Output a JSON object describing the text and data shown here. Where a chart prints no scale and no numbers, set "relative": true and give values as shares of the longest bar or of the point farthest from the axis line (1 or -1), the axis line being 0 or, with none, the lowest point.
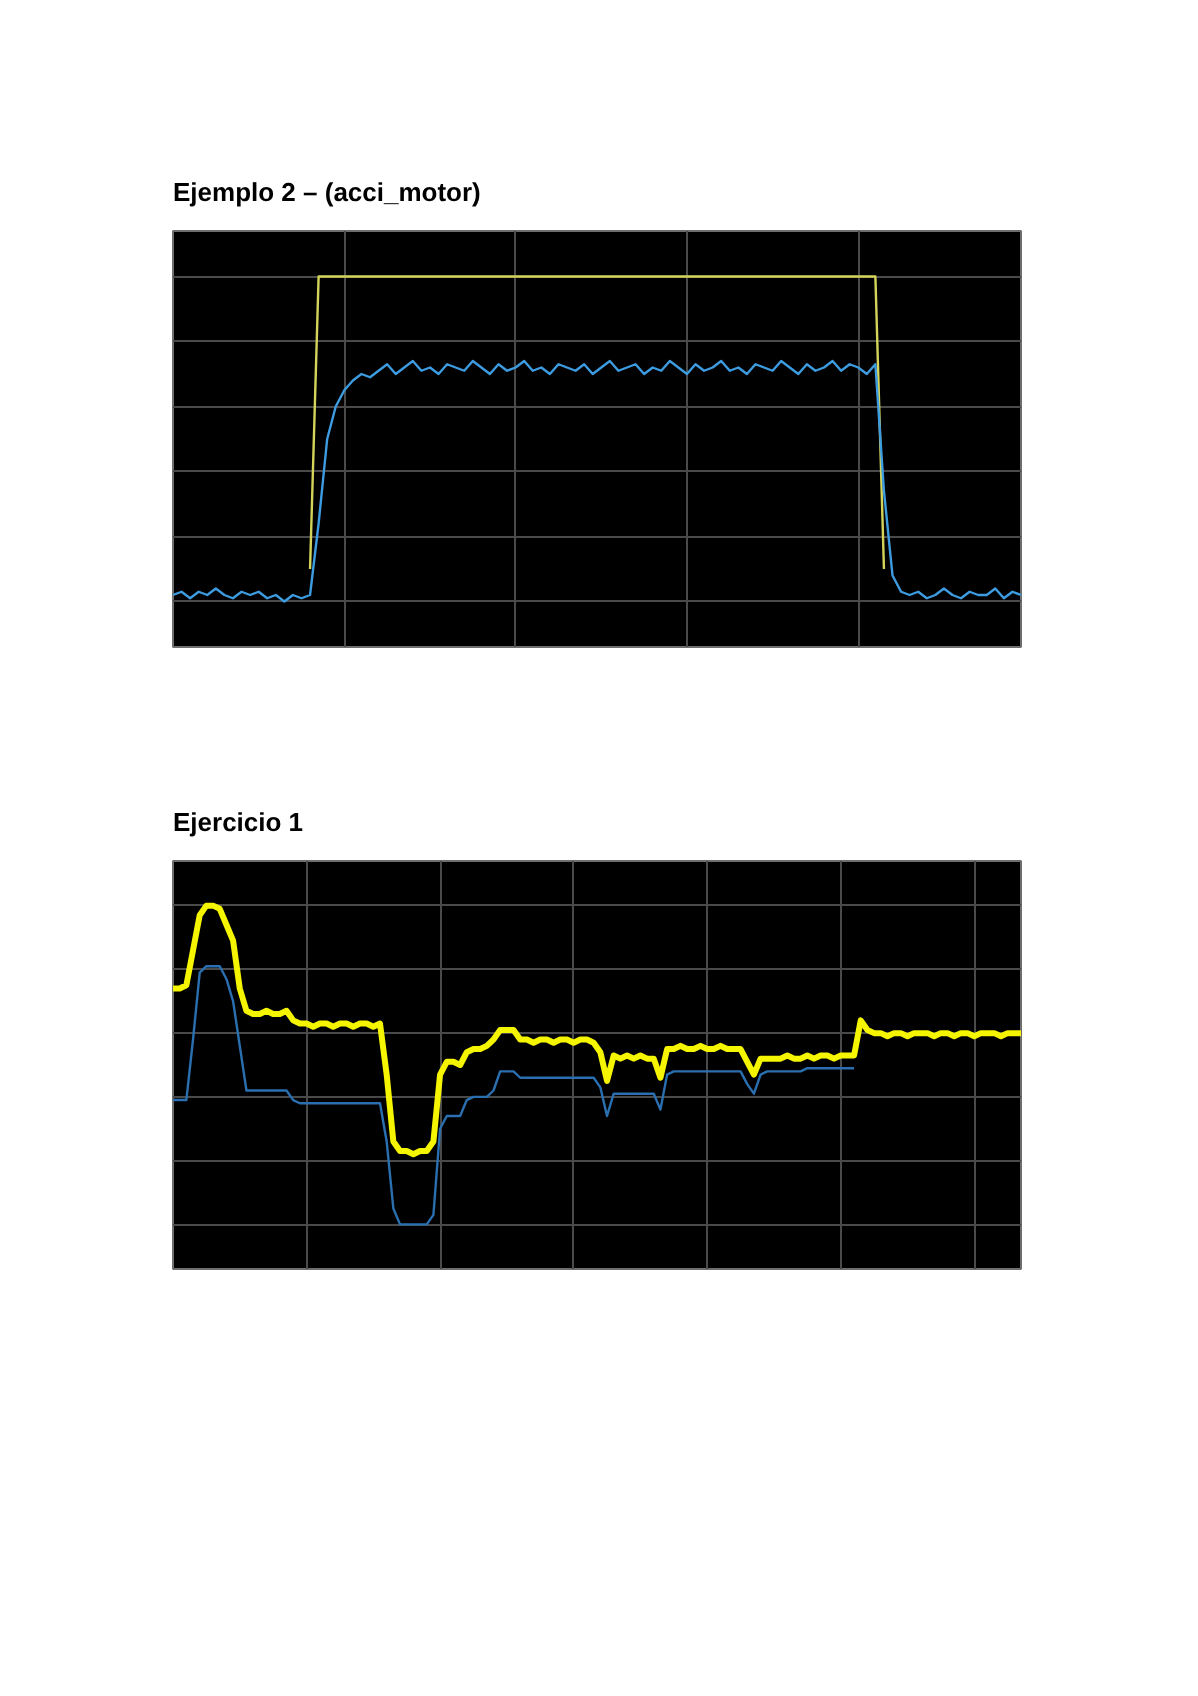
{
  "chart_data": [
    {
      "type": "line",
      "title": "Ejemplo 2 – (acci_motor)",
      "relative": true,
      "grid": true,
      "tick_labels": false,
      "categories": [
        null,
        null,
        null,
        null,
        null,
        null,
        null,
        null,
        null,
        null,
        null,
        null,
        null,
        null,
        null,
        null,
        null,
        null,
        null,
        null,
        null,
        null,
        null,
        null,
        null,
        null,
        null,
        null,
        null,
        null,
        null,
        null,
        null,
        null,
        null,
        null,
        null,
        null,
        null,
        null,
        null,
        null,
        null,
        null,
        null,
        null,
        null,
        null,
        null,
        null,
        null,
        null,
        null,
        null,
        null,
        null,
        null,
        null,
        null,
        null,
        null,
        null,
        null,
        null,
        null,
        null,
        null,
        null,
        null,
        null,
        null,
        null,
        null,
        null,
        null,
        null,
        null,
        null,
        null,
        null,
        null,
        null,
        null,
        null,
        null,
        null,
        null,
        null,
        null,
        null,
        null,
        null,
        null,
        null,
        null,
        null,
        null,
        null,
        null,
        null
      ],
      "series": [
        {
          "color": "#d4d45a",
          "values": [
            null,
            null,
            null,
            null,
            null,
            null,
            null,
            null,
            null,
            null,
            null,
            null,
            null,
            null,
            null,
            null,
            0.1,
            1,
            1,
            1,
            1,
            1,
            1,
            1,
            1,
            1,
            1,
            1,
            1,
            1,
            1,
            1,
            1,
            1,
            1,
            1,
            1,
            1,
            1,
            1,
            1,
            1,
            1,
            1,
            1,
            1,
            1,
            1,
            1,
            1,
            1,
            1,
            1,
            1,
            1,
            1,
            1,
            1,
            1,
            1,
            1,
            1,
            1,
            1,
            1,
            1,
            1,
            1,
            1,
            1,
            1,
            1,
            1,
            1,
            1,
            1,
            1,
            1,
            1,
            1,
            1,
            1,
            1,
            0.1,
            null,
            null,
            null,
            null,
            null,
            null,
            null,
            null,
            null,
            null,
            null,
            null,
            null,
            null,
            null,
            null
          ]
        },
        {
          "color": "#3d9be0",
          "values": [
            0.02,
            0.03,
            0.01,
            0.03,
            0.02,
            0.04,
            0.02,
            0.01,
            0.03,
            0.02,
            0.03,
            0.01,
            0.02,
            0.0,
            0.02,
            0.01,
            0.02,
            0.24,
            0.5,
            0.6,
            0.65,
            0.68,
            0.7,
            0.69,
            0.71,
            0.73,
            0.7,
            0.72,
            0.74,
            0.71,
            0.72,
            0.7,
            0.73,
            0.72,
            0.71,
            0.74,
            0.72,
            0.7,
            0.73,
            0.71,
            0.72,
            0.74,
            0.71,
            0.72,
            0.7,
            0.73,
            0.72,
            0.71,
            0.73,
            0.7,
            0.72,
            0.74,
            0.71,
            0.72,
            0.73,
            0.7,
            0.72,
            0.71,
            0.74,
            0.72,
            0.7,
            0.73,
            0.71,
            0.72,
            0.74,
            0.71,
            0.72,
            0.7,
            0.73,
            0.72,
            0.71,
            0.74,
            0.72,
            0.7,
            0.73,
            0.71,
            0.72,
            0.74,
            0.71,
            0.73,
            0.72,
            0.7,
            0.73,
            0.34,
            0.08,
            0.03,
            0.02,
            0.03,
            0.01,
            0.02,
            0.04,
            0.02,
            0.01,
            0.03,
            0.02,
            0.02,
            0.04,
            0.01,
            0.03,
            0.02
          ]
        }
      ]
    },
    {
      "type": "line",
      "title": "Ejercicio 1",
      "relative": true,
      "grid": true,
      "tick_labels": false,
      "categories": [
        null,
        null,
        null,
        null,
        null,
        null,
        null,
        null,
        null,
        null,
        null,
        null,
        null,
        null,
        null,
        null,
        null,
        null,
        null,
        null,
        null,
        null,
        null,
        null,
        null,
        null,
        null,
        null,
        null,
        null,
        null,
        null,
        null,
        null,
        null,
        null,
        null,
        null,
        null,
        null,
        null,
        null,
        null,
        null,
        null,
        null,
        null,
        null,
        null,
        null,
        null,
        null,
        null,
        null,
        null,
        null,
        null,
        null,
        null,
        null,
        null,
        null,
        null,
        null,
        null,
        null,
        null,
        null,
        null,
        null,
        null,
        null,
        null,
        null,
        null,
        null,
        null,
        null,
        null,
        null,
        null,
        null,
        null,
        null,
        null,
        null,
        null,
        null,
        null,
        null,
        null,
        null,
        null,
        null,
        null,
        null,
        null,
        null,
        null,
        null,
        null,
        null,
        null,
        null,
        null,
        null,
        null,
        null,
        null,
        null,
        null,
        null,
        null,
        null,
        null,
        null,
        null,
        null,
        null,
        null,
        null,
        null,
        null,
        null,
        null,
        null,
        null,
        null
      ],
      "series": [
        {
          "color": "#f5f500",
          "values": [
            0.74,
            0.74,
            0.75,
            0.86,
            0.97,
            1.0,
            1.0,
            0.99,
            0.94,
            0.89,
            0.74,
            0.67,
            0.66,
            0.66,
            0.67,
            0.66,
            0.66,
            0.67,
            0.64,
            0.63,
            0.63,
            0.62,
            0.63,
            0.63,
            0.62,
            0.63,
            0.63,
            0.62,
            0.63,
            0.63,
            0.62,
            0.63,
            0.47,
            0.26,
            0.23,
            0.23,
            0.22,
            0.23,
            0.23,
            0.26,
            0.47,
            0.51,
            0.51,
            0.5,
            0.54,
            0.55,
            0.55,
            0.56,
            0.58,
            0.61,
            0.61,
            0.61,
            0.58,
            0.58,
            0.57,
            0.58,
            0.58,
            0.57,
            0.58,
            0.58,
            0.57,
            0.58,
            0.58,
            0.57,
            0.54,
            0.45,
            0.53,
            0.52,
            0.53,
            0.52,
            0.53,
            0.52,
            0.52,
            0.46,
            0.55,
            0.55,
            0.56,
            0.55,
            0.55,
            0.56,
            0.55,
            0.55,
            0.56,
            0.55,
            0.55,
            0.55,
            0.51,
            0.47,
            0.52,
            0.52,
            0.52,
            0.52,
            0.53,
            0.52,
            0.52,
            0.53,
            0.52,
            0.53,
            0.53,
            0.52,
            0.53,
            0.53,
            0.53,
            0.64,
            0.61,
            0.6,
            0.6,
            0.59,
            0.6,
            0.6,
            0.59,
            0.6,
            0.6,
            0.6,
            0.59,
            0.6,
            0.6,
            0.59,
            0.6,
            0.6,
            0.59,
            0.6,
            0.6,
            0.6,
            0.59,
            0.6,
            0.6,
            0.6
          ]
        },
        {
          "color": "#2a6fb0",
          "values": [
            0.39,
            0.39,
            0.39,
            0.58,
            0.79,
            0.81,
            0.81,
            0.81,
            0.77,
            0.7,
            0.56,
            0.42,
            0.42,
            0.42,
            0.42,
            0.42,
            0.42,
            0.42,
            0.39,
            0.38,
            0.38,
            0.38,
            0.38,
            0.38,
            0.38,
            0.38,
            0.38,
            0.38,
            0.38,
            0.38,
            0.38,
            0.38,
            0.26,
            0.05,
            0.0,
            0.0,
            0.0,
            0.0,
            0.0,
            0.03,
            0.3,
            0.34,
            0.34,
            0.34,
            0.39,
            0.4,
            0.4,
            0.4,
            0.42,
            0.48,
            0.48,
            0.48,
            0.46,
            0.46,
            0.46,
            0.46,
            0.46,
            0.46,
            0.46,
            0.46,
            0.46,
            0.46,
            0.46,
            0.46,
            0.43,
            0.34,
            0.41,
            0.41,
            0.41,
            0.41,
            0.41,
            0.41,
            0.41,
            0.36,
            0.47,
            0.48,
            0.48,
            0.48,
            0.48,
            0.48,
            0.48,
            0.48,
            0.48,
            0.48,
            0.48,
            0.48,
            0.44,
            0.41,
            0.47,
            0.48,
            0.48,
            0.48,
            0.48,
            0.48,
            0.48,
            0.49,
            0.49,
            0.49,
            0.49,
            0.49,
            0.49,
            0.49,
            0.49,
            null,
            null,
            null,
            null,
            null,
            null,
            null,
            null,
            null,
            null,
            null,
            null,
            null,
            null,
            null,
            null,
            null,
            null,
            null,
            null,
            null,
            null,
            null,
            null,
            null
          ]
        }
      ]
    }
  ]
}
